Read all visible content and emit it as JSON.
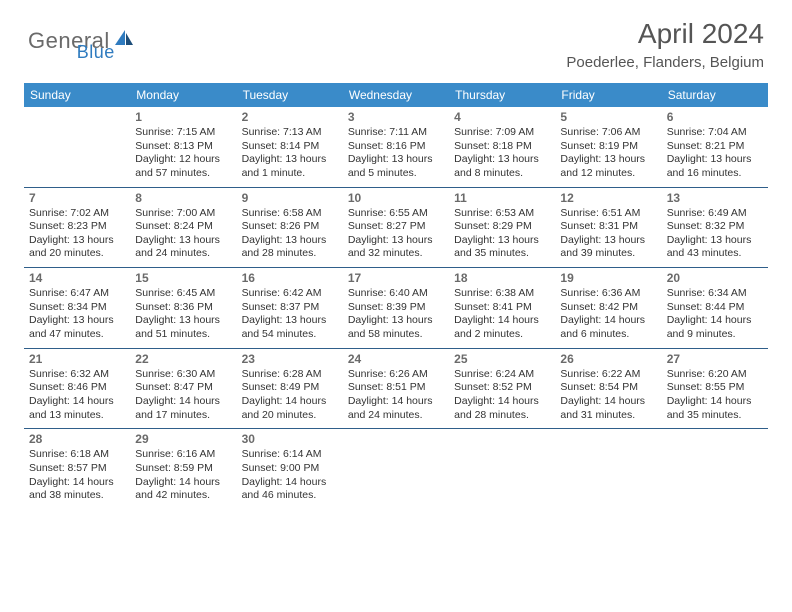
{
  "brand": {
    "general": "General",
    "blue": "Blue"
  },
  "title": "April 2024",
  "location": "Poederlee, Flanders, Belgium",
  "colors": {
    "header_bg": "#3a8bc9",
    "header_text": "#ffffff",
    "rule": "#2f5e8a",
    "daynum": "#6a6a6a",
    "body_text": "#333333",
    "title_text": "#555555",
    "logo_gray": "#6a6a6a",
    "logo_blue": "#2f7bbf"
  },
  "day_headers": [
    "Sunday",
    "Monday",
    "Tuesday",
    "Wednesday",
    "Thursday",
    "Friday",
    "Saturday"
  ],
  "weeks": [
    [
      {
        "n": "",
        "sr": "",
        "ss": "",
        "dl": ""
      },
      {
        "n": "1",
        "sr": "Sunrise: 7:15 AM",
        "ss": "Sunset: 8:13 PM",
        "dl": "Daylight: 12 hours and 57 minutes."
      },
      {
        "n": "2",
        "sr": "Sunrise: 7:13 AM",
        "ss": "Sunset: 8:14 PM",
        "dl": "Daylight: 13 hours and 1 minute."
      },
      {
        "n": "3",
        "sr": "Sunrise: 7:11 AM",
        "ss": "Sunset: 8:16 PM",
        "dl": "Daylight: 13 hours and 5 minutes."
      },
      {
        "n": "4",
        "sr": "Sunrise: 7:09 AM",
        "ss": "Sunset: 8:18 PM",
        "dl": "Daylight: 13 hours and 8 minutes."
      },
      {
        "n": "5",
        "sr": "Sunrise: 7:06 AM",
        "ss": "Sunset: 8:19 PM",
        "dl": "Daylight: 13 hours and 12 minutes."
      },
      {
        "n": "6",
        "sr": "Sunrise: 7:04 AM",
        "ss": "Sunset: 8:21 PM",
        "dl": "Daylight: 13 hours and 16 minutes."
      }
    ],
    [
      {
        "n": "7",
        "sr": "Sunrise: 7:02 AM",
        "ss": "Sunset: 8:23 PM",
        "dl": "Daylight: 13 hours and 20 minutes."
      },
      {
        "n": "8",
        "sr": "Sunrise: 7:00 AM",
        "ss": "Sunset: 8:24 PM",
        "dl": "Daylight: 13 hours and 24 minutes."
      },
      {
        "n": "9",
        "sr": "Sunrise: 6:58 AM",
        "ss": "Sunset: 8:26 PM",
        "dl": "Daylight: 13 hours and 28 minutes."
      },
      {
        "n": "10",
        "sr": "Sunrise: 6:55 AM",
        "ss": "Sunset: 8:27 PM",
        "dl": "Daylight: 13 hours and 32 minutes."
      },
      {
        "n": "11",
        "sr": "Sunrise: 6:53 AM",
        "ss": "Sunset: 8:29 PM",
        "dl": "Daylight: 13 hours and 35 minutes."
      },
      {
        "n": "12",
        "sr": "Sunrise: 6:51 AM",
        "ss": "Sunset: 8:31 PM",
        "dl": "Daylight: 13 hours and 39 minutes."
      },
      {
        "n": "13",
        "sr": "Sunrise: 6:49 AM",
        "ss": "Sunset: 8:32 PM",
        "dl": "Daylight: 13 hours and 43 minutes."
      }
    ],
    [
      {
        "n": "14",
        "sr": "Sunrise: 6:47 AM",
        "ss": "Sunset: 8:34 PM",
        "dl": "Daylight: 13 hours and 47 minutes."
      },
      {
        "n": "15",
        "sr": "Sunrise: 6:45 AM",
        "ss": "Sunset: 8:36 PM",
        "dl": "Daylight: 13 hours and 51 minutes."
      },
      {
        "n": "16",
        "sr": "Sunrise: 6:42 AM",
        "ss": "Sunset: 8:37 PM",
        "dl": "Daylight: 13 hours and 54 minutes."
      },
      {
        "n": "17",
        "sr": "Sunrise: 6:40 AM",
        "ss": "Sunset: 8:39 PM",
        "dl": "Daylight: 13 hours and 58 minutes."
      },
      {
        "n": "18",
        "sr": "Sunrise: 6:38 AM",
        "ss": "Sunset: 8:41 PM",
        "dl": "Daylight: 14 hours and 2 minutes."
      },
      {
        "n": "19",
        "sr": "Sunrise: 6:36 AM",
        "ss": "Sunset: 8:42 PM",
        "dl": "Daylight: 14 hours and 6 minutes."
      },
      {
        "n": "20",
        "sr": "Sunrise: 6:34 AM",
        "ss": "Sunset: 8:44 PM",
        "dl": "Daylight: 14 hours and 9 minutes."
      }
    ],
    [
      {
        "n": "21",
        "sr": "Sunrise: 6:32 AM",
        "ss": "Sunset: 8:46 PM",
        "dl": "Daylight: 14 hours and 13 minutes."
      },
      {
        "n": "22",
        "sr": "Sunrise: 6:30 AM",
        "ss": "Sunset: 8:47 PM",
        "dl": "Daylight: 14 hours and 17 minutes."
      },
      {
        "n": "23",
        "sr": "Sunrise: 6:28 AM",
        "ss": "Sunset: 8:49 PM",
        "dl": "Daylight: 14 hours and 20 minutes."
      },
      {
        "n": "24",
        "sr": "Sunrise: 6:26 AM",
        "ss": "Sunset: 8:51 PM",
        "dl": "Daylight: 14 hours and 24 minutes."
      },
      {
        "n": "25",
        "sr": "Sunrise: 6:24 AM",
        "ss": "Sunset: 8:52 PM",
        "dl": "Daylight: 14 hours and 28 minutes."
      },
      {
        "n": "26",
        "sr": "Sunrise: 6:22 AM",
        "ss": "Sunset: 8:54 PM",
        "dl": "Daylight: 14 hours and 31 minutes."
      },
      {
        "n": "27",
        "sr": "Sunrise: 6:20 AM",
        "ss": "Sunset: 8:55 PM",
        "dl": "Daylight: 14 hours and 35 minutes."
      }
    ],
    [
      {
        "n": "28",
        "sr": "Sunrise: 6:18 AM",
        "ss": "Sunset: 8:57 PM",
        "dl": "Daylight: 14 hours and 38 minutes."
      },
      {
        "n": "29",
        "sr": "Sunrise: 6:16 AM",
        "ss": "Sunset: 8:59 PM",
        "dl": "Daylight: 14 hours and 42 minutes."
      },
      {
        "n": "30",
        "sr": "Sunrise: 6:14 AM",
        "ss": "Sunset: 9:00 PM",
        "dl": "Daylight: 14 hours and 46 minutes."
      },
      {
        "n": "",
        "sr": "",
        "ss": "",
        "dl": ""
      },
      {
        "n": "",
        "sr": "",
        "ss": "",
        "dl": ""
      },
      {
        "n": "",
        "sr": "",
        "ss": "",
        "dl": ""
      },
      {
        "n": "",
        "sr": "",
        "ss": "",
        "dl": ""
      }
    ]
  ]
}
